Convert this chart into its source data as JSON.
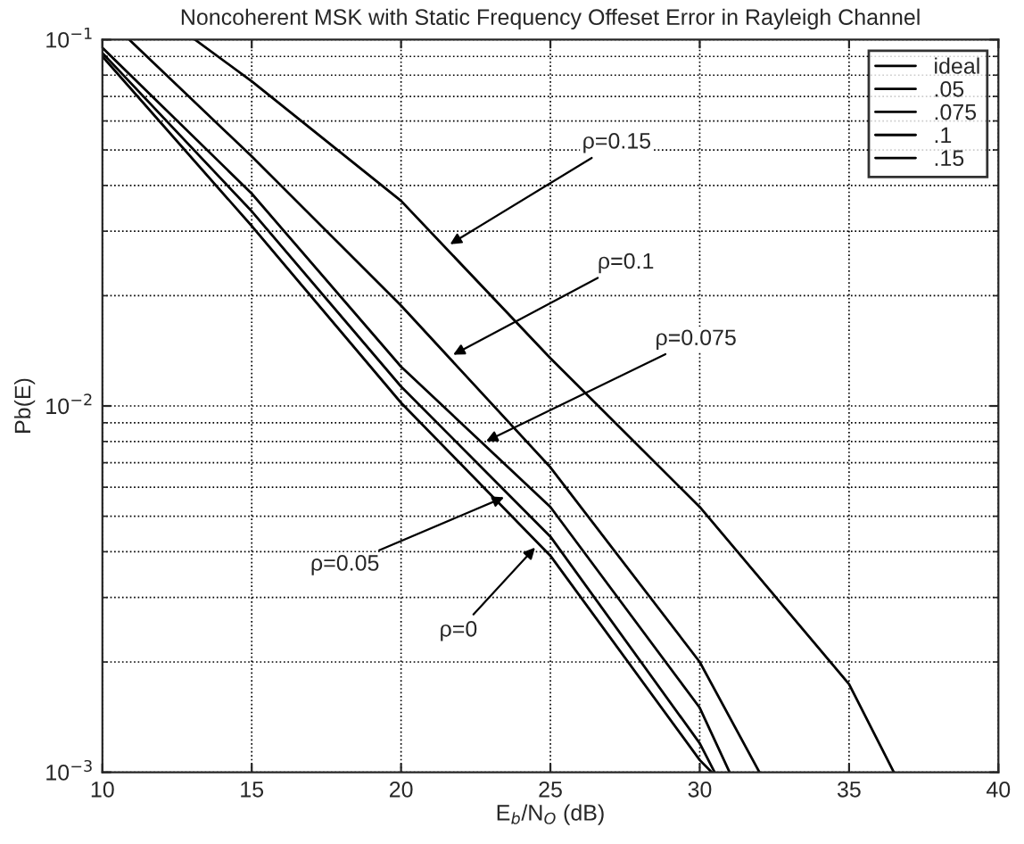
{
  "chart_data": {
    "type": "line",
    "title": "Noncoherent MSK with Static Frequency Offeset Error in Rayleigh Channel",
    "xlabel": "E$_{b}$/N$_{O}$ (dB)",
    "ylabel": "Pb(E)",
    "series": [
      {
        "name": "ideal",
        "color": "#000000",
        "x": [
          10,
          15,
          20,
          25,
          30,
          30.4
        ],
        "values": [
          0.09,
          0.031,
          0.0102,
          0.0039,
          0.00108,
          0.001
        ]
      },
      {
        "name": ".05",
        "color": "#000000",
        "x": [
          10,
          15,
          20,
          25,
          30,
          30.5
        ],
        "values": [
          0.092,
          0.034,
          0.0113,
          0.0044,
          0.0012,
          0.001
        ]
      },
      {
        "name": ".075",
        "color": "#000000",
        "x": [
          10,
          15,
          20,
          25,
          30,
          31
        ],
        "values": [
          0.095,
          0.038,
          0.0128,
          0.0053,
          0.0015,
          0.001
        ]
      },
      {
        "name": ".1",
        "color": "#000000",
        "x": [
          10.9,
          15,
          20,
          25,
          30,
          32
        ],
        "values": [
          0.1,
          0.048,
          0.0188,
          0.0068,
          0.002,
          0.001
        ]
      },
      {
        "name": ".15",
        "color": "#000000",
        "x": [
          13.1,
          15,
          20,
          25,
          30,
          35,
          36.5
        ],
        "values": [
          0.1,
          0.077,
          0.0363,
          0.0135,
          0.0053,
          0.00174,
          0.001
        ]
      }
    ],
    "annotations": [
      {
        "text": "ρ=0.15",
        "x": 21.5,
        "y": 0.0272
      },
      {
        "text": "ρ=0.1",
        "x": 21.6,
        "y": 0.0136
      },
      {
        "text": "ρ=0.075",
        "x": 22.7,
        "y": 0.0079
      },
      {
        "text": "ρ=0.05",
        "x": 23.6,
        "y": 0.0057
      },
      {
        "text": "ρ=0",
        "x": 24.6,
        "y": 0.0042
      }
    ],
    "log": "y",
    "xlim": [
      10,
      40
    ],
    "xticks": [
      10,
      15,
      20,
      25,
      30,
      35,
      40
    ],
    "ylim": [
      0.001,
      0.1
    ],
    "yticks": [
      {
        "value": 0.001,
        "label": "10$^{−3}$"
      },
      {
        "value": 0.01,
        "label": "10$^{−2}$"
      },
      {
        "value": 0.1,
        "label": "10$^{−1}$"
      }
    ],
    "grid": true,
    "legend": "top right",
    "line_style": "solid",
    "marker": "none"
  }
}
